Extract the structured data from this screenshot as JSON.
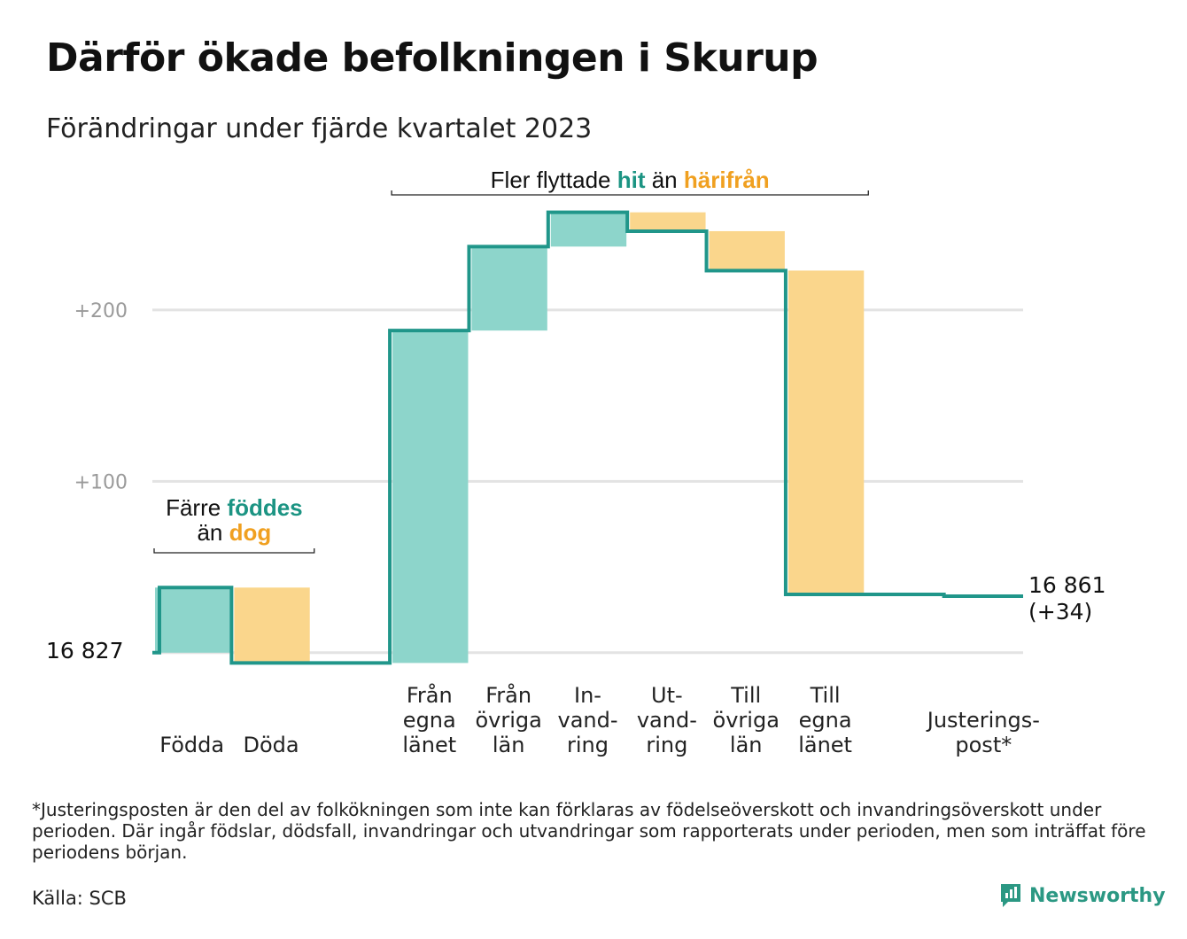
{
  "title": "Därför ökade befolkningen i Skurup",
  "subtitle": "Förändringar under fjärde kvartalet 2023",
  "footnote": "*Justeringsposten är den del av folkökningen som inte kan förklaras av födelseöverskott och invandringsöverskott under perioden. Där ingår födslar, dödsfall, invandringar och utvandringar som rapporterats under perioden, men som inträffat före periodens början.",
  "source": "Källa: SCB",
  "brand": "Newsworthy",
  "colors": {
    "increase_fill": "#8dd5cb",
    "decrease_fill": "#fad68c",
    "line": "#20968a",
    "grid": "#e3e3e3",
    "teal_text": "#1c9483",
    "orange_text": "#f0a020"
  },
  "chart_data": {
    "type": "waterfall",
    "start_value": 16827,
    "start_label": "16  827",
    "end_label": "16 861",
    "end_change_label": "(+34)",
    "y_ticks": [
      {
        "value": 100,
        "label": "+100"
      },
      {
        "value": 200,
        "label": "+200"
      }
    ],
    "ylim": [
      -12,
      262
    ],
    "grid": true,
    "steps": [
      {
        "label": [
          "Födda"
        ],
        "change": 38,
        "kind": "increase"
      },
      {
        "label": [
          "Döda"
        ],
        "change": -44,
        "kind": "decrease"
      },
      {
        "label": [],
        "change": 0,
        "kind": "gap"
      },
      {
        "label": [
          "Från",
          "egna",
          "länet"
        ],
        "change": 194,
        "kind": "increase"
      },
      {
        "label": [
          "Från",
          "övriga",
          "län"
        ],
        "change": 49,
        "kind": "increase"
      },
      {
        "label": [
          "In-",
          "vand-",
          "ring"
        ],
        "change": 20,
        "kind": "increase"
      },
      {
        "label": [
          "Ut-",
          "vand-",
          "ring"
        ],
        "change": -11,
        "kind": "decrease"
      },
      {
        "label": [
          "Till",
          "övriga",
          "län"
        ],
        "change": -23,
        "kind": "decrease"
      },
      {
        "label": [
          "Till",
          "egna",
          "länet"
        ],
        "change": -189,
        "kind": "decrease"
      },
      {
        "label": [],
        "change": 0,
        "kind": "gap"
      },
      {
        "label": [
          "Justerings-",
          "post*"
        ],
        "change": -1,
        "kind": "adjustment"
      }
    ],
    "annotations": [
      {
        "parts": [
          {
            "text": "Fler flyttade",
            "color": "dark"
          },
          {
            "text": "hit",
            "color": "teal"
          },
          {
            "text": "än",
            "color": "dark"
          },
          {
            "text": "härifrån",
            "color": "orange"
          }
        ],
        "span": [
          3,
          8
        ]
      },
      {
        "lines": [
          [
            {
              "text": "Färre",
              "color": "dark"
            },
            {
              "text": "föddes",
              "color": "teal"
            }
          ],
          [
            {
              "text": "än",
              "color": "dark"
            },
            {
              "text": "dog",
              "color": "orange"
            }
          ]
        ],
        "span": [
          0,
          1
        ]
      }
    ]
  }
}
